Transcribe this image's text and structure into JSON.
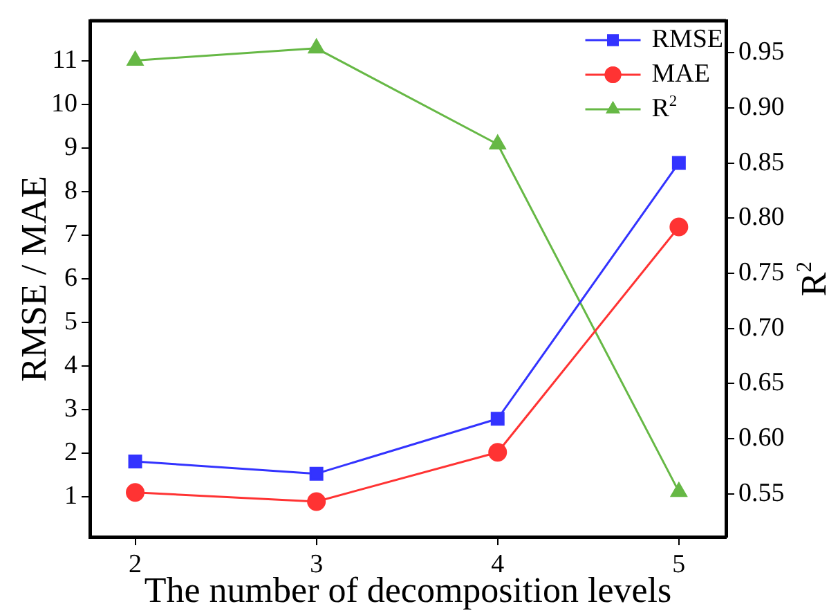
{
  "chart_data": {
    "type": "line",
    "xlabel": "The number of decomposition levels",
    "ylabel": "RMSE / MAE",
    "y2label": "R$^{2}$",
    "x": [
      2,
      3,
      4,
      5
    ],
    "xlim": [
      1.75,
      5.26
    ],
    "xticks": [
      2,
      3,
      4,
      5
    ],
    "ylim": [
      0.08,
      11.92
    ],
    "yticks": [
      1,
      2,
      3,
      4,
      5,
      6,
      7,
      8,
      9,
      10,
      11
    ],
    "y2lim": [
      0.511,
      0.979
    ],
    "y2ticks": [
      {
        "value": 0.55,
        "label": "0.55"
      },
      {
        "value": 0.6,
        "label": "0.60"
      },
      {
        "value": 0.65,
        "label": "0.65"
      },
      {
        "value": 0.7,
        "label": "0.70"
      },
      {
        "value": 0.75,
        "label": "0.75"
      },
      {
        "value": 0.8,
        "label": "0.80"
      },
      {
        "value": 0.85,
        "label": "0.85"
      },
      {
        "value": 0.9,
        "label": "0.90"
      },
      {
        "value": 0.95,
        "label": "0.95"
      }
    ],
    "series": [
      {
        "name": "RMSE",
        "color": "#3333ff",
        "marker": "square",
        "values": [
          1.81,
          1.53,
          2.79,
          8.66
        ]
      },
      {
        "name": "MAE",
        "color": "#ff3333",
        "marker": "circle",
        "values": [
          1.1,
          0.89,
          2.02,
          7.19
        ]
      },
      {
        "name": "R$^{2}$",
        "color": "#66b845",
        "marker": "triangle",
        "axis": "y2",
        "values": [
          0.943,
          0.954,
          0.867,
          0.552
        ]
      }
    ],
    "legend": "top right",
    "grid": false
  }
}
